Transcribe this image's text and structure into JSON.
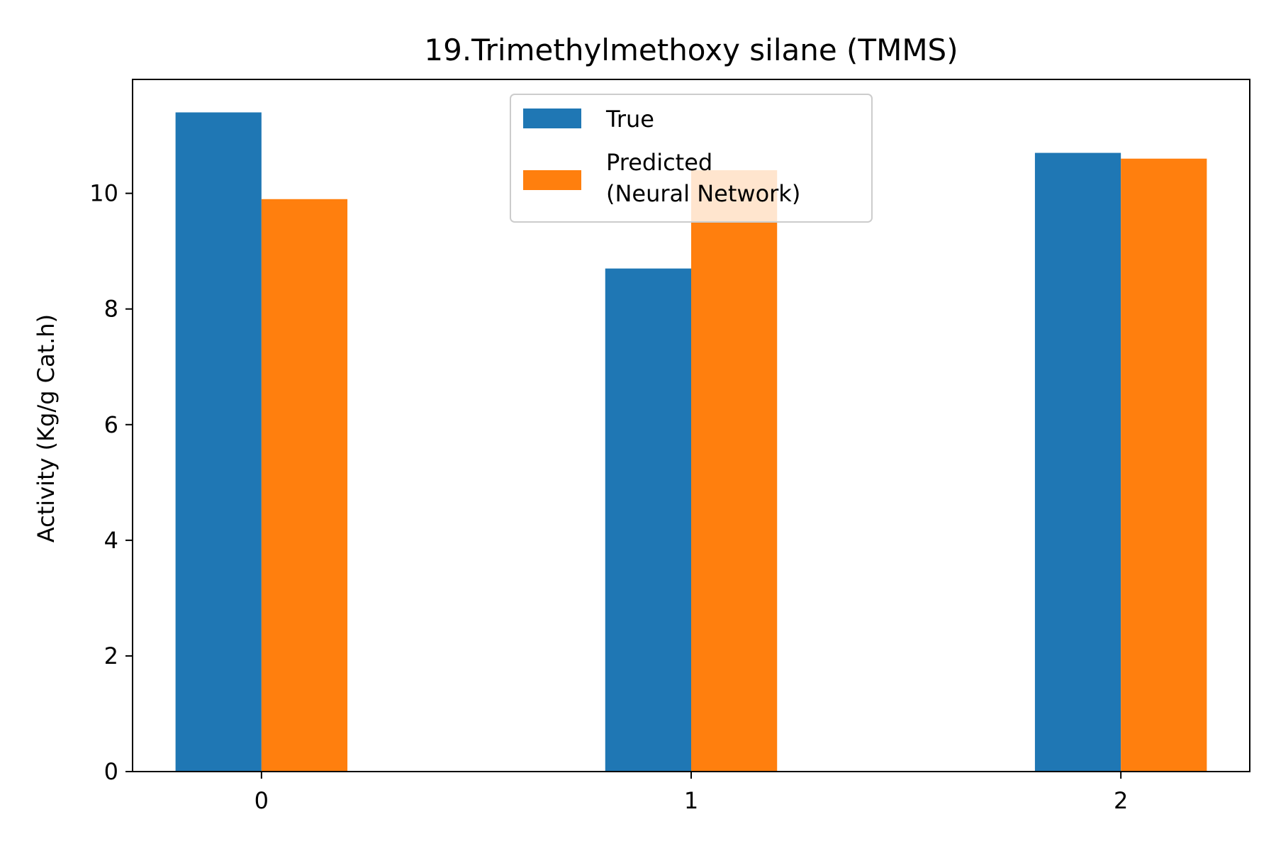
{
  "chart_data": {
    "type": "bar",
    "title": "19.Trimethylmethoxy silane (TMMS)",
    "xlabel": "",
    "ylabel": "Activity (Kg/g Cat.h)",
    "categories": [
      "0",
      "1",
      "2"
    ],
    "series": [
      {
        "name": "True",
        "color": "#1f77b4",
        "values": [
          11.4,
          8.7,
          10.7
        ]
      },
      {
        "name": "Predicted\n(Neural Network)",
        "color": "#ff7f0e",
        "values": [
          9.9,
          10.4,
          10.6
        ]
      }
    ],
    "xlim": [
      -0.3,
      2.3
    ],
    "ylim": [
      0,
      11.97
    ],
    "yticks": [
      0,
      2,
      4,
      6,
      8,
      10
    ],
    "grid": false,
    "legend_position": "top-center"
  }
}
